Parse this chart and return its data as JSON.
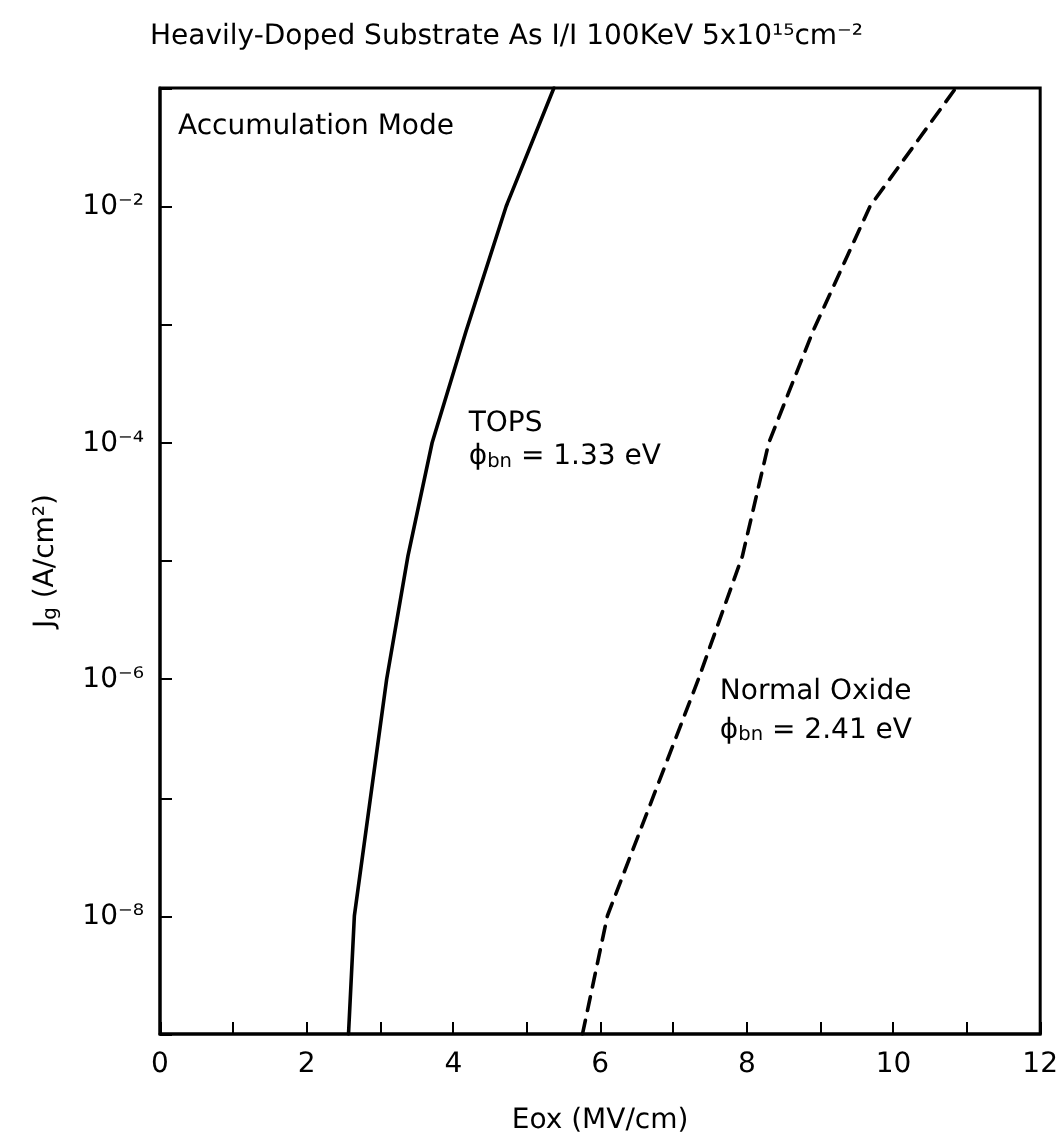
{
  "chart_data": {
    "type": "line",
    "title": "Heavily-Doped Substrate As I/I 100KeV 5x10¹⁵cm⁻²",
    "xlabel": "Eox (MV/cm)",
    "ylabel": "J$_{g}$ (A/cm²)",
    "log": "y",
    "grid": false,
    "marker": "none",
    "xlim": [
      0,
      12
    ],
    "xticks": [
      0,
      {
        "value": 1,
        "label": null
      },
      2,
      {
        "value": 3,
        "label": null
      },
      4,
      {
        "value": 5,
        "label": null
      },
      6,
      {
        "value": 7,
        "label": null
      },
      8,
      {
        "value": 9,
        "label": null
      },
      10,
      {
        "value": 11,
        "label": null
      },
      12
    ],
    "ylim": [
      1e-09,
      0.1
    ],
    "yticks": [
      {
        "value": 1e-09,
        "label": null
      },
      {
        "value": 1e-08,
        "label": "10⁻⁸"
      },
      {
        "value": 1e-07,
        "label": null
      },
      {
        "value": 1e-06,
        "label": "10⁻⁶"
      },
      {
        "value": 1e-05,
        "label": null
      },
      {
        "value": 0.0001,
        "label": "10⁻⁴"
      },
      {
        "value": 0.001,
        "label": null
      },
      {
        "value": 0.01,
        "label": "10⁻²"
      },
      {
        "value": 0.1,
        "label": null
      }
    ],
    "series": [
      {
        "color": "#000000",
        "line_style": "solid",
        "x": [
          2.57,
          2.65,
          3.09,
          3.38,
          3.71,
          4.17,
          4.72,
          5.37
        ],
        "values": [
          1e-09,
          1e-08,
          1e-06,
          1.1e-05,
          0.0001,
          0.00087,
          0.01,
          0.1
        ]
      },
      {
        "color": "#000000",
        "line_style": "dashed",
        "x": [
          5.76,
          6.1,
          7.34,
          7.94,
          8.3,
          8.9,
          9.68,
          10.85
        ],
        "values": [
          1e-09,
          1e-08,
          1e-06,
          1.1e-05,
          0.0001,
          0.00087,
          0.01,
          0.1
        ]
      }
    ],
    "annotations": [
      "Accumulation Mode",
      "TOPS",
      "ϕ$_{bn}$ = 1.33 eV",
      "Normal Oxide",
      "ϕ$_{bn}$ = 2.41 eV"
    ]
  }
}
